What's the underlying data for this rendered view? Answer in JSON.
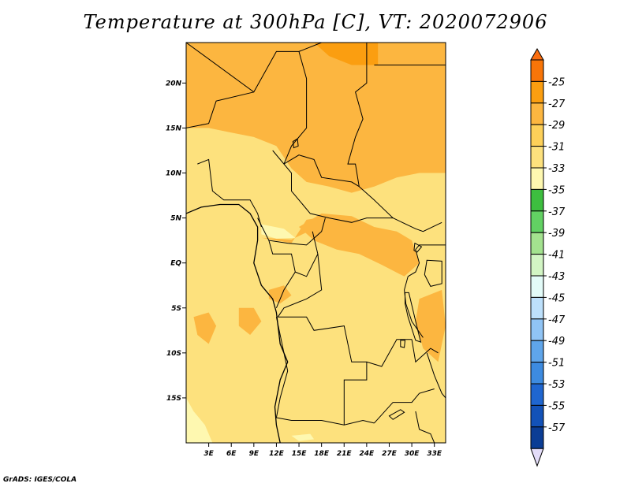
{
  "title": "Temperature at 300hPa [C], VT: 2020072906",
  "credit": "GrADS: IGES/COLA",
  "map": {
    "lon_range": [
      0,
      34.5
    ],
    "lat_range": [
      -20,
      24.5
    ],
    "lon_ticks": [
      {
        "value": 3,
        "label": "3E"
      },
      {
        "value": 6,
        "label": "6E"
      },
      {
        "value": 9,
        "label": "9E"
      },
      {
        "value": 12,
        "label": "12E"
      },
      {
        "value": 15,
        "label": "15E"
      },
      {
        "value": 18,
        "label": "18E"
      },
      {
        "value": 21,
        "label": "21E"
      },
      {
        "value": 24,
        "label": "24E"
      },
      {
        "value": 27,
        "label": "27E"
      },
      {
        "value": 30,
        "label": "30E"
      },
      {
        "value": 33,
        "label": "33E"
      }
    ],
    "lat_ticks": [
      {
        "value": 20,
        "label": "20N"
      },
      {
        "value": 15,
        "label": "15N"
      },
      {
        "value": 10,
        "label": "10N"
      },
      {
        "value": 5,
        "label": "5N"
      },
      {
        "value": 0,
        "label": "EQ"
      },
      {
        "value": -5,
        "label": "5S"
      },
      {
        "value": -10,
        "label": "10S"
      },
      {
        "value": -15,
        "label": "15S"
      }
    ],
    "background_color": "#fde17d",
    "regions": [
      {
        "band": "-29 to -31",
        "color": "#fcb640",
        "points": [
          [
            0,
            24.5
          ],
          [
            34.5,
            24.5
          ],
          [
            34.5,
            10
          ],
          [
            31,
            10
          ],
          [
            28,
            9.5
          ],
          [
            25,
            8.5
          ],
          [
            22,
            7.8
          ],
          [
            19,
            8.5
          ],
          [
            16,
            9
          ],
          [
            14,
            10.5
          ],
          [
            12,
            13
          ],
          [
            9,
            14
          ],
          [
            6,
            14.5
          ],
          [
            3,
            15
          ],
          [
            0,
            15
          ]
        ]
      },
      {
        "band": "-29 to -31",
        "color": "#fcb640",
        "points": [
          [
            10,
            2.8
          ],
          [
            14,
            2.2
          ],
          [
            16,
            4.8
          ],
          [
            19,
            5.2
          ],
          [
            17,
            3.8
          ],
          [
            14,
            2.6
          ]
        ]
      },
      {
        "band": "-29 to -31",
        "color": "#fcb640",
        "points": [
          [
            15,
            4
          ],
          [
            18,
            5.5
          ],
          [
            22,
            5.2
          ],
          [
            25,
            4
          ],
          [
            28,
            3.5
          ],
          [
            30,
            2.5
          ],
          [
            31,
            0
          ],
          [
            29,
            -1.5
          ],
          [
            26,
            -0.2
          ],
          [
            23,
            1
          ],
          [
            20,
            1.5
          ],
          [
            17,
            2.5
          ]
        ]
      },
      {
        "band": "-29 to -31",
        "color": "#fcb640",
        "points": [
          [
            31,
            -4
          ],
          [
            34,
            -3
          ],
          [
            34.5,
            -7
          ],
          [
            33.5,
            -11
          ],
          [
            31.5,
            -9.5
          ],
          [
            30.5,
            -6.5
          ]
        ]
      },
      {
        "band": "-29 to -31",
        "color": "#fcb640",
        "points": [
          [
            1,
            -6
          ],
          [
            3,
            -5.5
          ],
          [
            4,
            -7
          ],
          [
            3,
            -9
          ],
          [
            1.5,
            -8
          ]
        ]
      },
      {
        "band": "-29 to -31",
        "color": "#fcb640",
        "points": [
          [
            7,
            -5
          ],
          [
            9,
            -5
          ],
          [
            10,
            -6.5
          ],
          [
            8.5,
            -8
          ],
          [
            7,
            -7
          ]
        ]
      },
      {
        "band": "-29 to -31",
        "color": "#fcb640",
        "points": [
          [
            11,
            -3
          ],
          [
            13,
            -2.5
          ],
          [
            14,
            -3.6
          ],
          [
            12.5,
            -4.5
          ],
          [
            11,
            -4
          ]
        ]
      },
      {
        "band": "-27 to -29",
        "color": "#fb9e10",
        "points": [
          [
            17,
            24.5
          ],
          [
            25.5,
            24.5
          ],
          [
            25.5,
            22
          ],
          [
            22,
            22
          ],
          [
            19,
            23
          ]
        ]
      },
      {
        "band": "-33 to -35",
        "color": "#fef8b0",
        "points": [
          [
            0,
            -15
          ],
          [
            0,
            -20
          ],
          [
            3.5,
            -20
          ],
          [
            2.5,
            -18
          ],
          [
            1,
            -16.5
          ]
        ]
      },
      {
        "band": "-33 to -35",
        "color": "#fef8b0",
        "points": [
          [
            10,
            4.3
          ],
          [
            13,
            3.8
          ],
          [
            14.5,
            2.8
          ],
          [
            12,
            2.7
          ],
          [
            10,
            3.2
          ]
        ]
      },
      {
        "band": "-33 to -35",
        "color": "#fef8b0",
        "points": [
          [
            14,
            -19.2
          ],
          [
            16.5,
            -19
          ],
          [
            17,
            -19.6
          ],
          [
            15,
            -19.8
          ]
        ]
      }
    ],
    "borders": [
      [
        [
          0,
          24.5
        ],
        [
          9,
          19
        ],
        [
          12,
          23.5
        ],
        [
          15,
          23.5
        ],
        [
          18,
          24.5
        ]
      ],
      [
        [
          0,
          15
        ],
        [
          3,
          15.5
        ],
        [
          4,
          18
        ],
        [
          9,
          19
        ]
      ],
      [
        [
          15,
          23.5
        ],
        [
          16,
          20.5
        ],
        [
          16,
          15
        ],
        [
          14,
          13
        ],
        [
          13,
          11
        ]
      ],
      [
        [
          24,
          24.5
        ],
        [
          24,
          20
        ],
        [
          22.5,
          19
        ],
        [
          23.5,
          16
        ],
        [
          22.5,
          14
        ],
        [
          21.5,
          11
        ],
        [
          22.5,
          11
        ],
        [
          23,
          8.5
        ],
        [
          25,
          7
        ],
        [
          27.5,
          5
        ],
        [
          30.5,
          3.8
        ],
        [
          31.5,
          3.5
        ],
        [
          34,
          4.5
        ]
      ],
      [
        [
          25,
          22
        ],
        [
          34.5,
          22
        ]
      ],
      [
        [
          1.5,
          11
        ],
        [
          3,
          11.5
        ],
        [
          3.5,
          8
        ],
        [
          5,
          7
        ],
        [
          8.5,
          7
        ],
        [
          9.5,
          5.5
        ],
        [
          10,
          4
        ]
      ],
      [
        [
          11.5,
          12.5
        ],
        [
          14,
          10
        ],
        [
          14,
          8
        ],
        [
          15.5,
          6.5
        ],
        [
          16.5,
          5.5
        ],
        [
          19,
          5
        ],
        [
          22,
          4.5
        ],
        [
          24,
          5
        ],
        [
          27.5,
          5
        ]
      ],
      [
        [
          13,
          11
        ],
        [
          15,
          12
        ],
        [
          17,
          11.5
        ],
        [
          18,
          9.5
        ],
        [
          22,
          9
        ],
        [
          23,
          8.5
        ]
      ],
      [
        [
          9.5,
          5
        ],
        [
          11,
          2.5
        ],
        [
          13.5,
          2.2
        ],
        [
          16,
          2
        ],
        [
          18,
          3.5
        ],
        [
          18.5,
          5
        ]
      ],
      [
        [
          11,
          2.5
        ],
        [
          11.5,
          1
        ],
        [
          14,
          1
        ],
        [
          14.5,
          -1
        ],
        [
          13,
          -3
        ],
        [
          12,
          -5
        ]
      ],
      [
        [
          14.5,
          -1
        ],
        [
          16,
          -1.5
        ],
        [
          17.5,
          1
        ],
        [
          16.8,
          3.5
        ]
      ],
      [
        [
          17.5,
          1
        ],
        [
          18,
          -3
        ],
        [
          16,
          -4
        ],
        [
          13,
          -5
        ],
        [
          12.2,
          -6
        ]
      ],
      [
        [
          12.2,
          -6
        ],
        [
          16,
          -6
        ],
        [
          17,
          -7.5
        ],
        [
          21,
          -7
        ],
        [
          22,
          -11
        ],
        [
          24,
          -11
        ],
        [
          26,
          -11.5
        ],
        [
          28,
          -8.5
        ],
        [
          30,
          -8.5
        ]
      ],
      [
        [
          12,
          -6
        ],
        [
          13,
          -10
        ],
        [
          13.5,
          -12
        ],
        [
          12.5,
          -15
        ],
        [
          12,
          -17.2
        ],
        [
          14,
          -17.5
        ],
        [
          18,
          -17.5
        ],
        [
          21,
          -18
        ],
        [
          23.5,
          -17.5
        ],
        [
          25,
          -17.8
        ]
      ],
      [
        [
          21,
          -18
        ],
        [
          21,
          -13
        ],
        [
          24,
          -13
        ],
        [
          24,
          -11
        ]
      ],
      [
        [
          25,
          -17.8
        ],
        [
          27.5,
          -15.5
        ],
        [
          30,
          -15.5
        ],
        [
          31,
          -14.5
        ],
        [
          33,
          -14
        ]
      ],
      [
        [
          30,
          -8.5
        ],
        [
          30.5,
          -11
        ],
        [
          32.5,
          -9.5
        ],
        [
          33.5,
          -10
        ]
      ],
      [
        [
          29.5,
          -1.5
        ],
        [
          30.5,
          -1
        ],
        [
          31,
          0
        ],
        [
          30.5,
          1.5
        ],
        [
          31,
          2
        ],
        [
          34.5,
          2
        ]
      ],
      [
        [
          29.5,
          -1.5
        ],
        [
          29,
          -3
        ],
        [
          29.2,
          -4.5
        ],
        [
          30,
          -6.5
        ],
        [
          31.5,
          -8.3
        ]
      ],
      [
        [
          32,
          -10
        ],
        [
          33,
          -12.5
        ],
        [
          34,
          -14.5
        ],
        [
          34.5,
          -15
        ]
      ],
      [
        [
          30.5,
          -16.5
        ],
        [
          31,
          -18.5
        ],
        [
          32.5,
          -19
        ],
        [
          33,
          -20
        ]
      ]
    ],
    "coastline": [
      [
        0,
        5.5
      ],
      [
        2,
        6.2
      ],
      [
        4.5,
        6.5
      ],
      [
        7,
        6.5
      ],
      [
        8.5,
        5.5
      ],
      [
        9.5,
        4
      ],
      [
        9.5,
        2.5
      ],
      [
        9,
        0
      ],
      [
        10,
        -2.5
      ],
      [
        11.5,
        -4
      ],
      [
        12,
        -5.5
      ],
      [
        12.5,
        -9
      ],
      [
        13.5,
        -11
      ],
      [
        12.5,
        -13
      ],
      [
        11.8,
        -16
      ],
      [
        12,
        -18
      ],
      [
        12.5,
        -20
      ]
    ],
    "lakes": [
      {
        "name": "lake-chad",
        "points": [
          [
            14.2,
            13.5
          ],
          [
            14.8,
            13.8
          ],
          [
            14.9,
            13.0
          ],
          [
            14.3,
            12.8
          ]
        ]
      },
      {
        "name": "lake-victoria",
        "points": [
          [
            32,
            0.3
          ],
          [
            34,
            0.2
          ],
          [
            34,
            -2.3
          ],
          [
            32.5,
            -2.6
          ],
          [
            31.7,
            -1.3
          ]
        ]
      },
      {
        "name": "lake-tanganyika",
        "points": [
          [
            29.1,
            -3.3
          ],
          [
            29.6,
            -3.3
          ],
          [
            30.8,
            -7.5
          ],
          [
            31.2,
            -8.8
          ],
          [
            30.5,
            -8.6
          ],
          [
            29.5,
            -6
          ],
          [
            29.1,
            -4.5
          ]
        ]
      },
      {
        "name": "lake-mweru",
        "points": [
          [
            28.5,
            -8.6
          ],
          [
            29.1,
            -8.6
          ],
          [
            29,
            -9.4
          ],
          [
            28.5,
            -9.3
          ]
        ]
      },
      {
        "name": "lake-albert",
        "points": [
          [
            30.4,
            2.2
          ],
          [
            31.3,
            1.8
          ],
          [
            30.7,
            1.2
          ],
          [
            30.3,
            1.4
          ]
        ]
      },
      {
        "name": "lake-kariba",
        "points": [
          [
            27,
            -17
          ],
          [
            28.5,
            -16.3
          ],
          [
            29,
            -16.6
          ],
          [
            27.5,
            -17.4
          ]
        ]
      }
    ]
  },
  "colorbar": {
    "levels": [
      "-25",
      "-27",
      "-29",
      "-31",
      "-33",
      "-35",
      "-37",
      "-39",
      "-41",
      "-43",
      "-45",
      "-47",
      "-49",
      "-51",
      "-53",
      "-55",
      "-57"
    ],
    "top_arrow_color": "#fa6d0f",
    "bottom_arrow_color": "#e3dcf8",
    "colors": [
      "#f87508",
      "#fb9e10",
      "#fcb640",
      "#fdd059",
      "#fde17d",
      "#fef8b0",
      "#3dbe3f",
      "#62d163",
      "#a3e28f",
      "#d2f5c4",
      "#e3fbf8",
      "#bde0fb",
      "#90c4f5",
      "#5fa5ea",
      "#3d8be0",
      "#1f66d0",
      "#1352b8",
      "#0b3d95"
    ]
  }
}
